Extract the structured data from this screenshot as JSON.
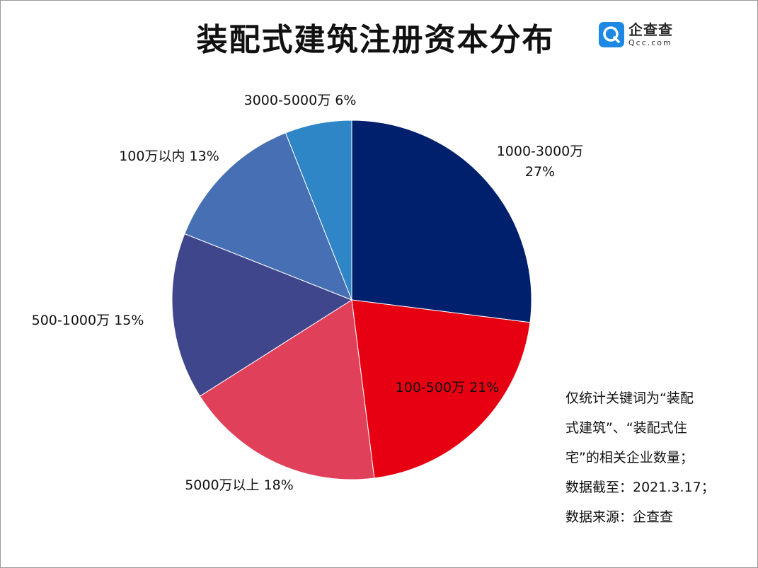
{
  "header": {
    "title": "装配式建筑注册资本分布",
    "logo_name": "企查查",
    "logo_domain": "Qcc.com"
  },
  "chart_data": {
    "type": "pie",
    "title": "装配式建筑注册资本分布",
    "slices": [
      {
        "name": "1000-3000万",
        "value": 27,
        "label_lines": [
          "1000-3000万",
          "27%"
        ],
        "color": "#00206e"
      },
      {
        "name": "100-500万",
        "value": 21,
        "label_lines": [
          "100-500万 21%"
        ],
        "color": "#e60012"
      },
      {
        "name": "5000万以上",
        "value": 18,
        "label_lines": [
          "5000万以上 18%"
        ],
        "color": "#e0405a"
      },
      {
        "name": "500-1000万",
        "value": 15,
        "label_lines": [
          "500-1000万 15%"
        ],
        "color": "#40468c"
      },
      {
        "name": "100万以内",
        "value": 13,
        "label_lines": [
          "100万以内 13%"
        ],
        "color": "#476fb4"
      },
      {
        "name": "3000-5000万",
        "value": 6,
        "label_lines": [
          "3000-5000万 6%"
        ],
        "color": "#2f86c6"
      }
    ],
    "start": "12 o'clock",
    "direction": "clockwise"
  },
  "note": {
    "lines": [
      "仅统计关键词为“装配",
      "式建筑”、“装配式住",
      "宅”的相关企业数量；",
      "数据截至：2021.3.17；",
      "数据来源：企查查"
    ]
  }
}
